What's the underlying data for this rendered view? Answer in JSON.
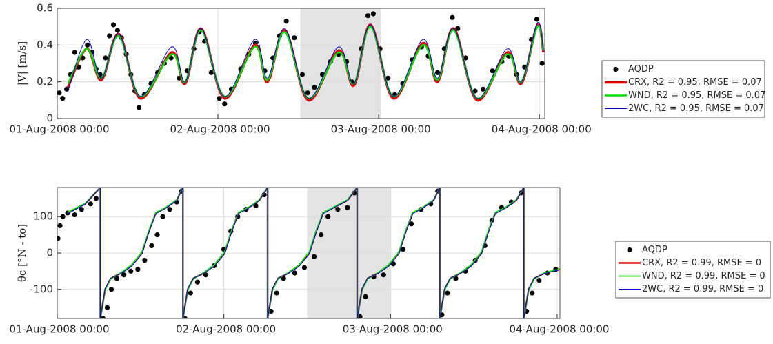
{
  "chart_data": [
    {
      "type": "line",
      "ylabel": "|V| [m/s]",
      "xlim": [
        0,
        72.8
      ],
      "ylim": [
        0,
        0.6
      ],
      "yticks": [
        0,
        0.2,
        0.4,
        0.6
      ],
      "xticks": [
        {
          "value": 0,
          "label": "01-Aug-2008 00:00"
        },
        {
          "value": 24,
          "label": "02-Aug-2008 00:00"
        },
        {
          "value": 48,
          "label": "03-Aug-2008 00:00"
        },
        {
          "value": 72,
          "label": "04-Aug-2008 00:00"
        }
      ],
      "grid": true,
      "smooth": true,
      "shade": [
        36.3,
        48.3
      ],
      "legend": "east-outside",
      "x": [
        1.6,
        4.4,
        6.6,
        9.2,
        12.4,
        17.1,
        19.1,
        21.5,
        25.0,
        29.5,
        31.4,
        34.0,
        37.5,
        42.0,
        44.3,
        46.8,
        50.2,
        54.6,
        56.8,
        59.2,
        62.7,
        67.2,
        69.3,
        71.7,
        72.6
      ],
      "series": [
        {
          "name": "AQDP",
          "color": "#000000",
          "marker": "dot",
          "x": [
            0.3,
            0.8,
            1.4,
            2.0,
            2.6,
            3.2,
            3.8,
            4.5,
            5.2,
            5.8,
            6.4,
            7.2,
            7.8,
            8.4,
            9.0,
            9.6,
            10.3,
            11.0,
            11.6,
            12.2,
            13.0,
            14.0,
            15.0,
            16.0,
            17.0,
            18.2,
            19.4,
            20.4,
            21.2,
            22.0,
            23.0,
            24.2,
            25.0,
            26.0,
            27.4,
            28.6,
            29.6,
            31.0,
            32.2,
            33.2,
            34.2,
            35.4,
            36.6,
            37.4,
            38.4,
            39.6,
            40.8,
            42.0,
            43.2,
            44.0,
            45.4,
            46.4,
            47.2,
            48.2,
            49.4,
            50.4,
            51.6,
            53.0,
            54.4,
            55.4,
            56.8,
            57.8,
            59.0,
            59.8,
            61.0,
            62.4,
            63.6,
            65.0,
            66.4,
            67.4,
            68.6,
            69.8,
            70.8,
            71.6,
            72.4
          ],
          "values": [
            0.14,
            0.11,
            0.16,
            0.24,
            0.36,
            0.28,
            0.33,
            0.4,
            0.36,
            0.27,
            0.24,
            0.33,
            0.45,
            0.51,
            0.48,
            0.44,
            0.35,
            0.24,
            0.15,
            0.06,
            0.13,
            0.19,
            0.25,
            0.3,
            0.33,
            0.22,
            0.26,
            0.38,
            0.47,
            0.42,
            0.25,
            0.11,
            0.08,
            0.16,
            0.27,
            0.35,
            0.41,
            0.26,
            0.33,
            0.45,
            0.53,
            0.44,
            0.24,
            0.14,
            0.17,
            0.24,
            0.31,
            0.35,
            0.31,
            0.2,
            0.38,
            0.56,
            0.57,
            0.38,
            0.22,
            0.13,
            0.19,
            0.32,
            0.39,
            0.34,
            0.25,
            0.38,
            0.55,
            0.49,
            0.33,
            0.15,
            0.16,
            0.26,
            0.31,
            0.34,
            0.24,
            0.28,
            0.43,
            0.54,
            0.3
          ]
        },
        {
          "name": "CRX, R2 = 0.95, RMSE = 0.07",
          "color": "#e00000",
          "width": 3.5,
          "values": [
            0.17,
            0.38,
            0.21,
            0.46,
            0.11,
            0.36,
            0.19,
            0.49,
            0.11,
            0.4,
            0.2,
            0.48,
            0.1,
            0.37,
            0.18,
            0.51,
            0.11,
            0.41,
            0.2,
            0.49,
            0.1,
            0.36,
            0.19,
            0.51,
            0.36
          ]
        },
        {
          "name": "WND, R2 = 0.95, RMSE = 0.07",
          "color": "#00e000",
          "width": 2.5,
          "values": [
            0.19,
            0.38,
            0.22,
            0.45,
            0.12,
            0.35,
            0.2,
            0.48,
            0.12,
            0.39,
            0.21,
            0.47,
            0.11,
            0.36,
            0.19,
            0.5,
            0.12,
            0.4,
            0.21,
            0.48,
            0.11,
            0.35,
            0.2,
            0.5,
            0.37
          ]
        },
        {
          "name": "2WC, R2 = 0.95, RMSE = 0.07",
          "color": "#0000e0",
          "width": 1,
          "values": [
            0.15,
            0.43,
            0.22,
            0.46,
            0.12,
            0.39,
            0.2,
            0.49,
            0.12,
            0.43,
            0.22,
            0.49,
            0.11,
            0.39,
            0.19,
            0.51,
            0.12,
            0.43,
            0.22,
            0.49,
            0.11,
            0.38,
            0.2,
            0.52,
            0.37
          ]
        }
      ]
    },
    {
      "type": "line",
      "ylabel": "θc [°N - to]",
      "xlim": [
        0,
        72.4
      ],
      "ylim": [
        -180,
        180
      ],
      "yticks": [
        -100,
        0,
        100
      ],
      "xticks": [
        {
          "value": 0,
          "label": "01-Aug-2008 00:00"
        },
        {
          "value": 24,
          "label": "02-Aug-2008 00:00"
        },
        {
          "value": 48,
          "label": "03-Aug-2008 00:00"
        },
        {
          "value": 72,
          "label": "04-Aug-2008 00:00"
        }
      ],
      "grid": true,
      "smooth": false,
      "shade": [
        36.0,
        48.1
      ],
      "legend": "east-outside",
      "x": [
        1.5,
        4,
        6.2,
        6.2,
        6.9,
        7.7,
        9.2,
        10.7,
        12.2,
        13.2,
        14.2,
        15.7,
        17.2,
        18.1,
        18.1,
        18.8,
        19.6,
        21.1,
        22.6,
        24.1,
        25.1,
        26.1,
        27.6,
        29.1,
        30.3,
        30.3,
        31.0,
        31.8,
        33.3,
        34.8,
        36.3,
        37.3,
        38.3,
        39.8,
        41.8,
        43.2,
        43.2,
        43.9,
        44.7,
        46.2,
        47.7,
        49.2,
        50.2,
        51.2,
        52.7,
        54.2,
        55.1,
        55.1,
        55.8,
        56.6,
        58.1,
        59.6,
        61.1,
        62.1,
        63.1,
        64.6,
        66.1,
        67.2,
        67.2,
        67.9,
        68.7,
        70.2,
        72.4
      ],
      "series": [
        {
          "name": "AQDP",
          "color": "#000000",
          "marker": "dot",
          "x": [
            0.1,
            0.4,
            0.8,
            1.5,
            2.5,
            3.5,
            4.8,
            5.6,
            6.6,
            7.2,
            7.8,
            8.6,
            9.6,
            10.6,
            11.6,
            12.6,
            13.6,
            14.4,
            15.2,
            16.2,
            17.2,
            17.9,
            18.4,
            19.2,
            20.2,
            21.4,
            22.6,
            24.0,
            25.0,
            26.0,
            27.2,
            28.6,
            29.8,
            30.8,
            31.6,
            32.6,
            34.2,
            35.6,
            37.0,
            38.0,
            39.0,
            40.4,
            41.8,
            42.8,
            43.6,
            44.4,
            45.6,
            47.0,
            48.4,
            49.8,
            51.0,
            52.4,
            53.8,
            54.8,
            55.4,
            56.2,
            57.4,
            58.8,
            60.2,
            61.6,
            62.6,
            64.0,
            65.4,
            66.8,
            67.6,
            68.4,
            69.4,
            70.6,
            71.8
          ],
          "values": [
            40,
            75,
            100,
            110,
            105,
            120,
            135,
            150,
            -180,
            -150,
            -100,
            -70,
            -60,
            -50,
            -45,
            -20,
            20,
            50,
            100,
            120,
            140,
            170,
            -180,
            -110,
            -80,
            -60,
            -35,
            10,
            60,
            100,
            120,
            130,
            160,
            -160,
            -110,
            -70,
            -55,
            -40,
            -10,
            50,
            100,
            120,
            125,
            165,
            -175,
            -120,
            -65,
            -60,
            -30,
            10,
            80,
            120,
            135,
            170,
            -170,
            -110,
            -70,
            -50,
            -20,
            20,
            90,
            125,
            140,
            165,
            -160,
            -110,
            -75,
            -55,
            -45
          ]
        },
        {
          "name": "CRX, R2 = 0.99, RMSE = 0",
          "color": "#e00000",
          "width": 2.5,
          "values": [
            110,
            135,
            180,
            -180,
            -100,
            -70,
            -55,
            -35,
            0,
            60,
            110,
            125,
            145,
            180,
            -180,
            -100,
            -70,
            -55,
            -35,
            0,
            60,
            110,
            125,
            145,
            180,
            -180,
            -100,
            -70,
            -55,
            -35,
            0,
            60,
            110,
            125,
            145,
            180,
            -180,
            -100,
            -70,
            -55,
            -35,
            0,
            60,
            110,
            125,
            145,
            180,
            -180,
            -100,
            -70,
            -55,
            -35,
            0,
            60,
            110,
            125,
            145,
            180,
            -180,
            -100,
            -70,
            -55,
            -45
          ]
        },
        {
          "name": "WND, R2 = 0.99, RMSE = 0",
          "color": "#00e000",
          "width": 1.8,
          "values": [
            112,
            136,
            180,
            -180,
            -102,
            -71,
            -54,
            -33,
            3,
            62,
            111,
            126,
            146,
            180,
            -180,
            -102,
            -71,
            -54,
            -33,
            3,
            62,
            111,
            126,
            146,
            180,
            -180,
            -102,
            -71,
            -54,
            -33,
            3,
            62,
            111,
            126,
            146,
            180,
            -180,
            -102,
            -71,
            -54,
            -33,
            3,
            62,
            111,
            126,
            146,
            180,
            -180,
            -102,
            -71,
            -54,
            -33,
            3,
            62,
            111,
            126,
            146,
            180,
            -180,
            -102,
            -71,
            -54,
            -44
          ]
        },
        {
          "name": "2WC, R2 = 0.99, RMSE = 0",
          "color": "#0000e0",
          "width": 1,
          "values": [
            108,
            134,
            180,
            -180,
            -98,
            -69,
            -56,
            -37,
            -3,
            57,
            108,
            124,
            144,
            180,
            -180,
            -98,
            -69,
            -56,
            -37,
            -3,
            57,
            108,
            124,
            144,
            180,
            -180,
            -98,
            -69,
            -56,
            -37,
            -3,
            57,
            108,
            124,
            144,
            180,
            -180,
            -98,
            -69,
            -56,
            -37,
            -3,
            57,
            108,
            124,
            144,
            180,
            -180,
            -98,
            -69,
            -56,
            -37,
            -3,
            57,
            108,
            124,
            144,
            180,
            -180,
            -98,
            -69,
            -56,
            -46
          ]
        }
      ]
    }
  ]
}
